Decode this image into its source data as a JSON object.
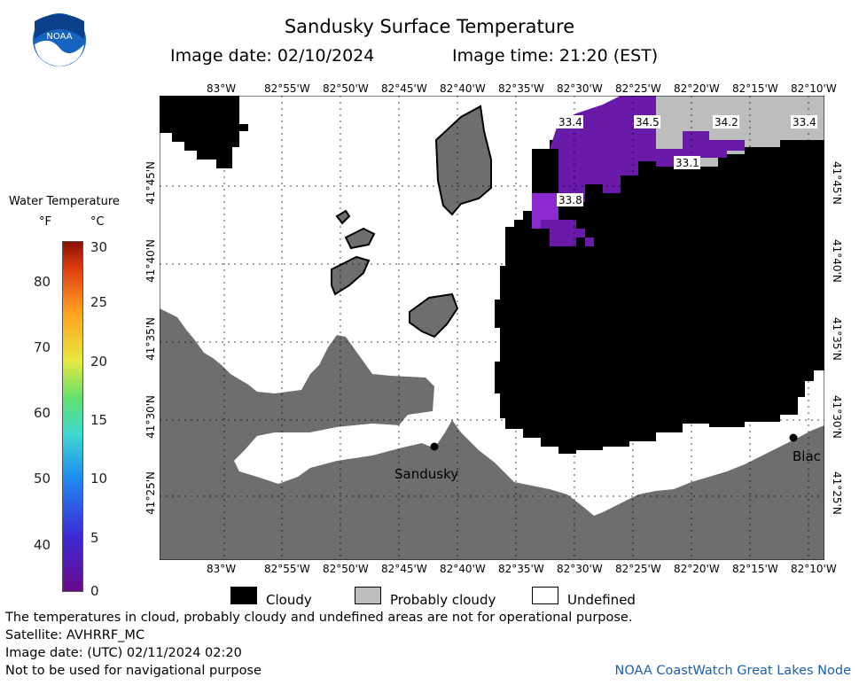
{
  "header": {
    "title": "Sandusky Surface Temperature",
    "image_date": "Image date: 02/10/2024",
    "image_time": "Image time: 21:20 (EST)"
  },
  "logo": {
    "text": "NOAA",
    "icon": "noaa-logo-icon"
  },
  "map": {
    "longitude_labels": [
      "83°W",
      "82°55'W",
      "82°50'W",
      "82°45'W",
      "82°40'W",
      "82°35'W",
      "82°30'W",
      "82°25'W",
      "82°20'W",
      "82°15'W",
      "82°10'W"
    ],
    "latitude_labels": [
      "41°45'N",
      "41°40'N",
      "41°35'N",
      "41°30'N",
      "41°25'N"
    ],
    "place_labels": [
      "Sandusky",
      "Blac"
    ],
    "temperature_labels": [
      "33.4",
      "34.5",
      "34.2",
      "33.4",
      "33.1",
      "33.8"
    ],
    "colors": {
      "land": "#6e6e6e",
      "cloudy": "#000000",
      "probably_cloudy": "#bdbdbd",
      "undefined": "#ffffff",
      "cold_water": "#7a1fb0"
    }
  },
  "legend": {
    "title": "Water Temperature",
    "unit_f": "°F",
    "unit_c": "°C",
    "ticks_f": [
      "80",
      "70",
      "60",
      "50",
      "40"
    ],
    "ticks_c": [
      "30",
      "25",
      "20",
      "15",
      "10",
      "5",
      "0"
    ]
  },
  "key": {
    "cloudy": "Cloudy",
    "probably_cloudy": "Probably cloudy",
    "undefined": "Undefined"
  },
  "footer": {
    "disclaimer": "The temperatures in cloud, probably cloudy and undefined areas are not for operational purpose.",
    "satellite": "Satellite: AVHRRF_MC",
    "utc_date": "Image date: (UTC) 02/11/2024  02:20",
    "nav_warning": "Not to be used for navigational purpose",
    "credit": "NOAA CoastWatch Great Lakes Node"
  }
}
